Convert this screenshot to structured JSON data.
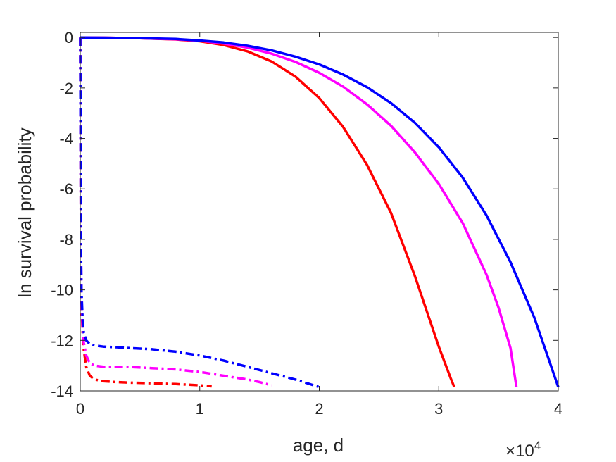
{
  "chart_data": {
    "type": "line",
    "xlabel": "age, d",
    "ylabel": "ln survival probability",
    "x_exponent_label": "×10",
    "x_exponent_power": "4",
    "xlim": [
      0,
      40000
    ],
    "ylim": [
      -14,
      0.2
    ],
    "x_ticks": [
      0,
      10000,
      20000,
      30000,
      40000
    ],
    "x_tick_labels": [
      "0",
      "1",
      "2",
      "3",
      "4"
    ],
    "y_ticks": [
      0,
      -2,
      -4,
      -6,
      -8,
      -10,
      -12,
      -14
    ],
    "y_tick_labels": [
      "0",
      "-2",
      "-4",
      "-6",
      "-8",
      "-10",
      "-12",
      "-14"
    ],
    "grid": false,
    "series": [
      {
        "color": "#ff0000",
        "style": "solid",
        "x": [
          0,
          2000,
          5000,
          8000,
          10000,
          12000,
          14000,
          16000,
          18000,
          20000,
          22000,
          24000,
          26000,
          28000,
          29000,
          30000,
          31000,
          31300
        ],
        "y": [
          0,
          -0.01,
          -0.03,
          -0.08,
          -0.15,
          -0.3,
          -0.55,
          -0.95,
          -1.55,
          -2.4,
          -3.55,
          -5.05,
          -6.95,
          -9.45,
          -10.85,
          -12.25,
          -13.5,
          -13.85
        ]
      },
      {
        "color": "#ff00ff",
        "style": "solid",
        "x": [
          0,
          2000,
          5000,
          8000,
          10000,
          12000,
          14000,
          16000,
          18000,
          20000,
          22000,
          24000,
          26000,
          28000,
          30000,
          32000,
          34000,
          35000,
          36000,
          36500
        ],
        "y": [
          0,
          -0.01,
          -0.03,
          -0.07,
          -0.13,
          -0.24,
          -0.4,
          -0.64,
          -0.97,
          -1.4,
          -1.95,
          -2.65,
          -3.5,
          -4.55,
          -5.8,
          -7.35,
          -9.4,
          -10.7,
          -12.3,
          -13.85
        ]
      },
      {
        "color": "#0000ff",
        "style": "solid",
        "x": [
          0,
          2000,
          5000,
          8000,
          10000,
          12000,
          14000,
          16000,
          18000,
          20000,
          22000,
          24000,
          26000,
          28000,
          30000,
          32000,
          34000,
          36000,
          38000,
          40000
        ],
        "y": [
          0,
          -0.01,
          -0.03,
          -0.06,
          -0.12,
          -0.2,
          -0.33,
          -0.51,
          -0.76,
          -1.07,
          -1.47,
          -1.97,
          -2.6,
          -3.38,
          -4.35,
          -5.55,
          -7.05,
          -8.9,
          -11.1,
          -13.85
        ]
      },
      {
        "color": "#ff0000",
        "style": "dashdot",
        "x": [
          0,
          50,
          100,
          200,
          300,
          500,
          800,
          1200,
          2000,
          3000,
          4000,
          6000,
          8000,
          10000,
          11000
        ],
        "y": [
          0,
          -7.5,
          -10.6,
          -11.7,
          -12.4,
          -13.05,
          -13.4,
          -13.55,
          -13.62,
          -13.65,
          -13.67,
          -13.7,
          -13.73,
          -13.78,
          -13.82
        ]
      },
      {
        "color": "#ff00ff",
        "style": "dashdot",
        "x": [
          0,
          50,
          100,
          200,
          300,
          500,
          800,
          1200,
          2000,
          3000,
          4000,
          6000,
          8000,
          10000,
          12000,
          14000,
          15000,
          16000
        ],
        "y": [
          0,
          -7.5,
          -10.3,
          -11.5,
          -12.1,
          -12.6,
          -12.9,
          -13.0,
          -13.05,
          -13.05,
          -13.05,
          -13.1,
          -13.15,
          -13.25,
          -13.4,
          -13.55,
          -13.65,
          -13.78
        ]
      },
      {
        "color": "#0000ff",
        "style": "dashdot",
        "x": [
          0,
          50,
          100,
          200,
          300,
          500,
          800,
          1200,
          2000,
          3000,
          4000,
          6000,
          8000,
          10000,
          12000,
          14000,
          16000,
          18000,
          19000,
          20000
        ],
        "y": [
          0,
          -7.5,
          -10.0,
          -11.2,
          -11.7,
          -12.0,
          -12.15,
          -12.2,
          -12.25,
          -12.27,
          -12.3,
          -12.35,
          -12.45,
          -12.6,
          -12.8,
          -13.05,
          -13.3,
          -13.55,
          -13.7,
          -13.85
        ]
      }
    ]
  }
}
